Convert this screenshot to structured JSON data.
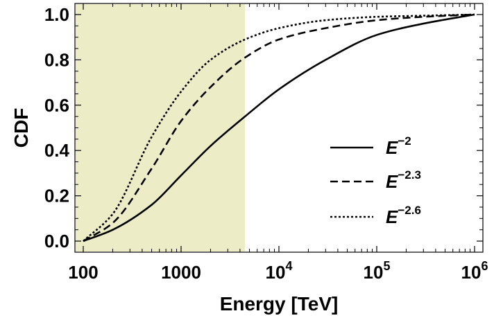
{
  "chart_data": {
    "type": "line",
    "title": "",
    "xlabel": "Energy [TeV]",
    "ylabel": "CDF",
    "xscale": "log",
    "xlim": [
      100,
      1000000
    ],
    "ylim": [
      0.0,
      1.0
    ],
    "x_ticks": [
      {
        "value": 100,
        "base": "100",
        "exp": ""
      },
      {
        "value": 1000,
        "base": "1000",
        "exp": ""
      },
      {
        "value": 10000,
        "base": "10",
        "exp": "4"
      },
      {
        "value": 100000,
        "base": "10",
        "exp": "5"
      },
      {
        "value": 1000000,
        "base": "10",
        "exp": "6"
      }
    ],
    "y_ticks": [
      "0.0",
      "0.2",
      "0.4",
      "0.6",
      "0.8",
      "1.0"
    ],
    "shaded_region": {
      "x_start": 100,
      "x_end": 4500,
      "color": "#ecedc6"
    },
    "grid": false,
    "legend_position": "right",
    "series": [
      {
        "name": "E",
        "name_sup": "−2",
        "dash": "solid",
        "color": "#000000",
        "x": [
          100,
          200,
          500,
          1000,
          2000,
          4500,
          10000,
          30000,
          100000,
          300000,
          1000000
        ],
        "y": [
          0.0,
          0.05,
          0.16,
          0.29,
          0.42,
          0.55,
          0.67,
          0.8,
          0.91,
          0.96,
          1.0
        ]
      },
      {
        "name": "E",
        "name_sup": "−2.3",
        "dash": "dashed",
        "color": "#000000",
        "x": [
          100,
          200,
          500,
          1000,
          2000,
          4500,
          10000,
          30000,
          100000,
          300000,
          1000000
        ],
        "y": [
          0.0,
          0.08,
          0.32,
          0.53,
          0.68,
          0.81,
          0.89,
          0.94,
          0.975,
          0.99,
          1.0
        ]
      },
      {
        "name": "E",
        "name_sup": "−2.6",
        "dash": "dotted",
        "color": "#000000",
        "x": [
          100,
          200,
          500,
          1000,
          2000,
          4500,
          10000,
          30000,
          100000,
          300000,
          1000000
        ],
        "y": [
          0.0,
          0.12,
          0.46,
          0.66,
          0.8,
          0.89,
          0.94,
          0.975,
          0.99,
          0.995,
          1.0
        ]
      }
    ]
  }
}
